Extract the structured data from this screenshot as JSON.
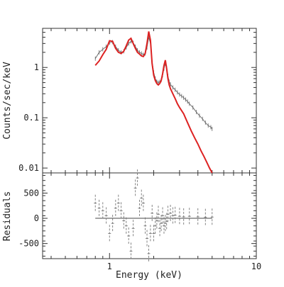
{
  "chart_data": [
    {
      "type": "line",
      "panel": "spectrum",
      "xscale": "log",
      "yscale": "log",
      "xlim": [
        0.35,
        10
      ],
      "ylim": [
        0.008,
        6
      ],
      "ylabel": "Counts/sec/keV",
      "y_ticks": [
        {
          "value": 0.01,
          "label": "0.01"
        },
        {
          "value": 0.1,
          "label": "0.1"
        },
        {
          "value": 1,
          "label": "1"
        }
      ],
      "series": [
        {
          "role": "data",
          "color": "#666666",
          "x": [
            0.8,
            0.85,
            0.9,
            0.95,
            1.0,
            1.05,
            1.1,
            1.15,
            1.2,
            1.25,
            1.3,
            1.35,
            1.4,
            1.45,
            1.5,
            1.55,
            1.6,
            1.65,
            1.7,
            1.75,
            1.8,
            1.85,
            1.9,
            1.95,
            2.0,
            2.05,
            2.1,
            2.15,
            2.2,
            2.25,
            2.3,
            2.35,
            2.4,
            2.45,
            2.5,
            2.55,
            2.6,
            2.7,
            2.8,
            2.9,
            3.0,
            3.1,
            3.2,
            3.3,
            3.4,
            3.5,
            3.7,
            3.9,
            4.1,
            4.3,
            4.5,
            4.7,
            4.9,
            5.0
          ],
          "y": [
            1.5,
            2.0,
            2.3,
            2.6,
            3.1,
            3.2,
            2.6,
            2.2,
            2.0,
            2.1,
            2.5,
            3.0,
            3.3,
            3.1,
            2.6,
            2.2,
            2.0,
            1.9,
            1.8,
            1.9,
            2.5,
            4.0,
            3.0,
            1.3,
            0.8,
            0.6,
            0.52,
            0.5,
            0.52,
            0.56,
            0.7,
            0.95,
            1.2,
            1.0,
            0.68,
            0.52,
            0.46,
            0.4,
            0.36,
            0.32,
            0.29,
            0.27,
            0.25,
            0.23,
            0.21,
            0.19,
            0.16,
            0.13,
            0.11,
            0.095,
            0.08,
            0.07,
            0.065,
            0.06
          ]
        },
        {
          "role": "model",
          "color": "#dd2222",
          "x": [
            0.8,
            0.85,
            0.9,
            0.95,
            1.0,
            1.05,
            1.1,
            1.15,
            1.2,
            1.25,
            1.3,
            1.35,
            1.4,
            1.45,
            1.5,
            1.55,
            1.6,
            1.65,
            1.7,
            1.75,
            1.8,
            1.85,
            1.9,
            1.95,
            2.0,
            2.05,
            2.1,
            2.15,
            2.2,
            2.25,
            2.3,
            2.35,
            2.4,
            2.45,
            2.5,
            2.55,
            2.6,
            2.7,
            2.8,
            2.9,
            3.0,
            3.2,
            3.4,
            3.6,
            3.8,
            4.0,
            4.2,
            4.4,
            4.6,
            4.8,
            5.0
          ],
          "y": [
            1.1,
            1.35,
            1.8,
            2.3,
            3.4,
            3.3,
            2.4,
            2.0,
            1.9,
            2.1,
            2.7,
            3.5,
            3.8,
            3.0,
            2.4,
            2.0,
            1.85,
            1.7,
            1.65,
            1.9,
            3.0,
            5.2,
            3.5,
            1.2,
            0.7,
            0.55,
            0.48,
            0.45,
            0.48,
            0.55,
            0.75,
            1.1,
            1.4,
            0.95,
            0.6,
            0.45,
            0.38,
            0.3,
            0.24,
            0.19,
            0.16,
            0.12,
            0.08,
            0.055,
            0.04,
            0.03,
            0.022,
            0.017,
            0.013,
            0.01,
            0.008
          ]
        }
      ]
    },
    {
      "type": "line",
      "panel": "residuals",
      "xscale": "log",
      "xlim": [
        0.35,
        10
      ],
      "ylim": [
        -800,
        900
      ],
      "xlabel": "Energy (keV)",
      "ylabel": "Residuals",
      "x_ticks": [
        {
          "value": 1,
          "label": "1"
        },
        {
          "value": 10,
          "label": "10"
        }
      ],
      "y_ticks": [
        {
          "value": -500,
          "label": "-500"
        },
        {
          "value": 0,
          "label": "0"
        },
        {
          "value": 500,
          "label": "500"
        }
      ],
      "zero_line": {
        "from": 0.8,
        "to": 5.0
      },
      "series": [
        {
          "role": "residuals",
          "color": "#777777",
          "x": [
            0.8,
            0.85,
            0.9,
            0.95,
            1.0,
            1.05,
            1.1,
            1.15,
            1.2,
            1.25,
            1.3,
            1.35,
            1.4,
            1.45,
            1.5,
            1.55,
            1.6,
            1.65,
            1.7,
            1.75,
            1.8,
            1.85,
            1.9,
            1.95,
            2.0,
            2.05,
            2.1,
            2.15,
            2.2,
            2.25,
            2.3,
            2.35,
            2.4,
            2.45,
            2.5,
            2.6,
            2.7,
            2.8,
            3.0,
            3.2,
            3.5,
            4.0,
            4.5,
            5.0
          ],
          "y": [
            300,
            200,
            150,
            50,
            -300,
            -100,
            200,
            300,
            150,
            -50,
            -150,
            -350,
            -650,
            -200,
            600,
            800,
            200,
            400,
            300,
            -150,
            -400,
            -700,
            -300,
            100,
            -300,
            -150,
            -50,
            80,
            -200,
            -100,
            50,
            -150,
            -100,
            -60,
            80,
            100,
            50,
            60,
            40,
            30,
            40,
            30,
            20,
            25
          ]
        }
      ]
    }
  ]
}
